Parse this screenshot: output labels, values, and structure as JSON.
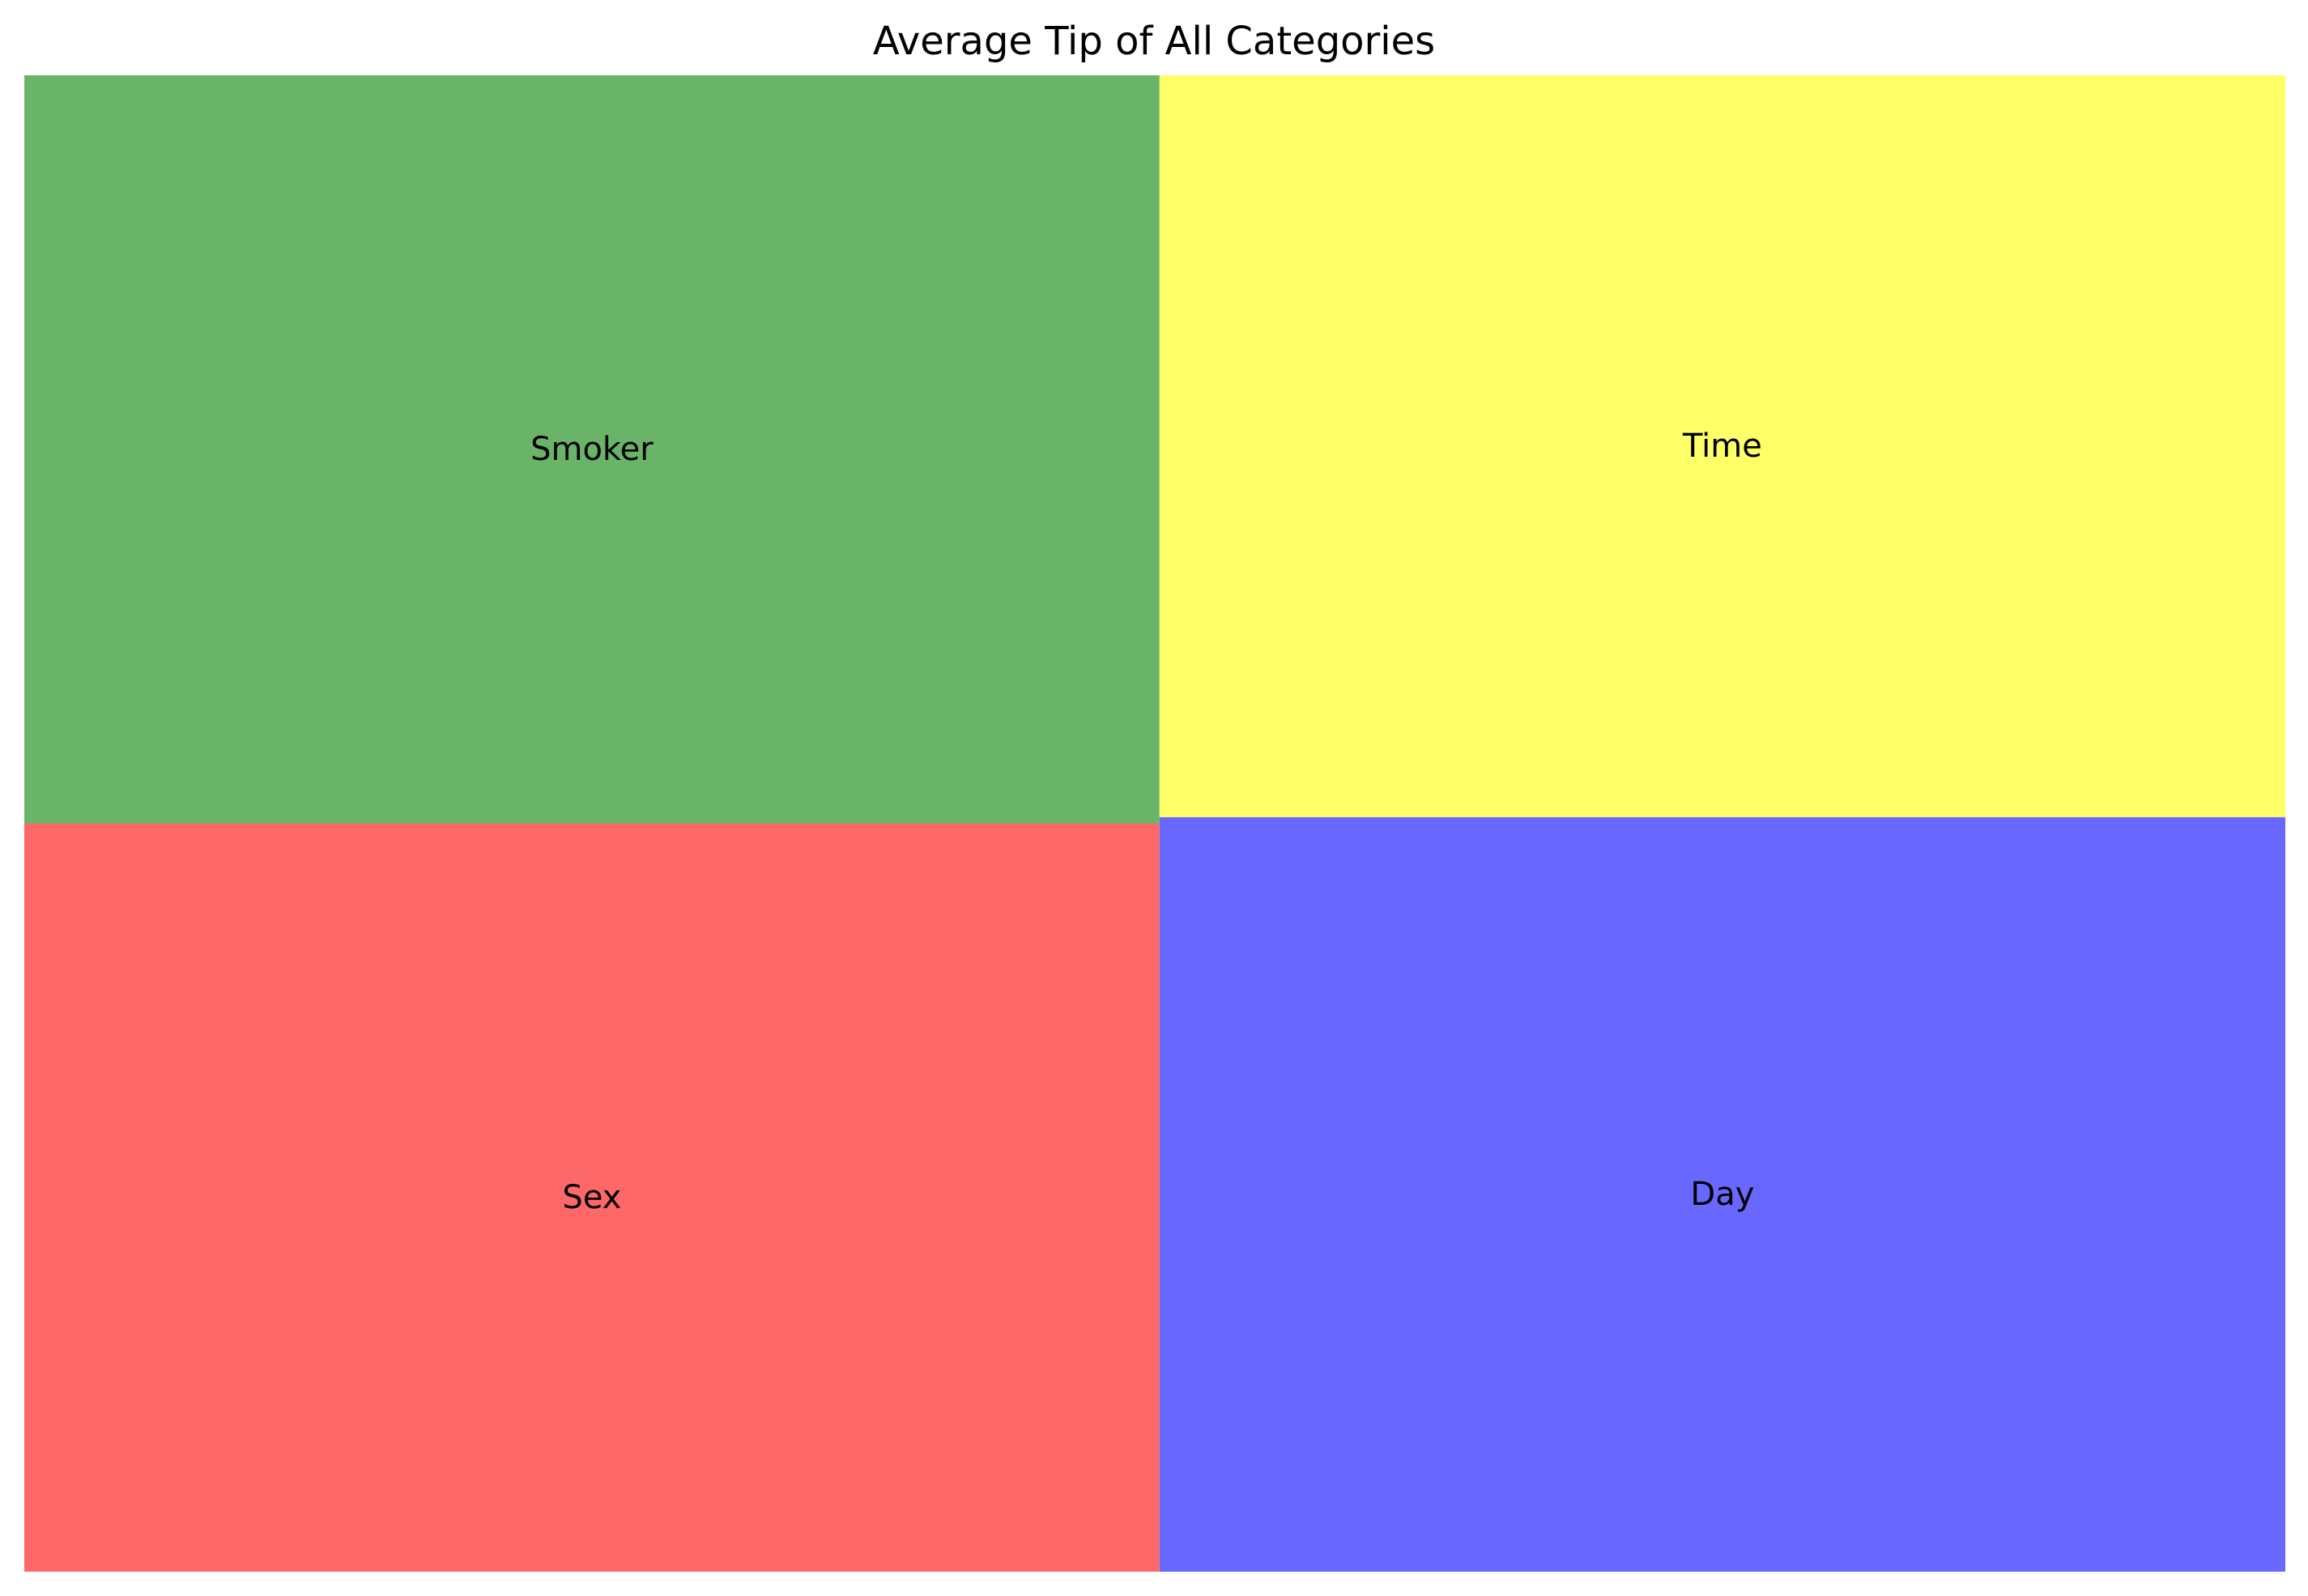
{
  "chart_data": {
    "type": "treemap",
    "title": "Average Tip of All Categories",
    "tiles": [
      {
        "label": "Sex",
        "value": 3.0,
        "color": "#ff6868"
      },
      {
        "label": "Smoker",
        "value": 3.0,
        "color": "#6ab46a"
      },
      {
        "label": "Day",
        "value": 3.0,
        "color": "#6868ff"
      },
      {
        "label": "Time",
        "value": 2.95,
        "color": "#ffff68"
      }
    ]
  }
}
